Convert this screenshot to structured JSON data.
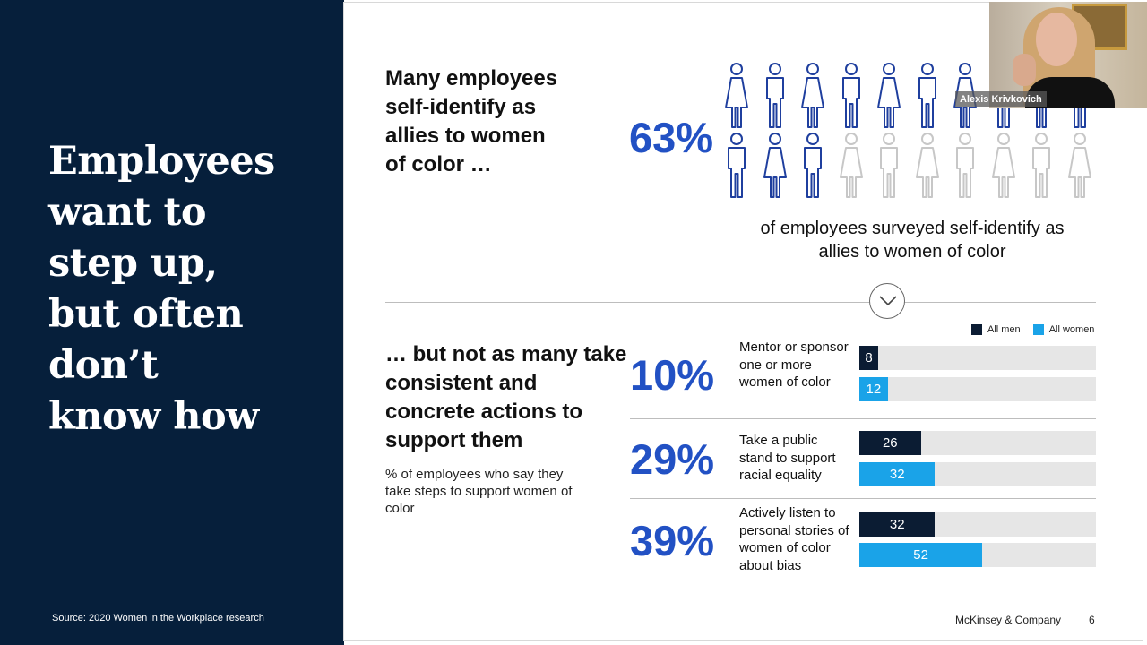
{
  "left_panel": {
    "title": "Employees\nwant to\nstep up,\nbut often\ndon’t\nknow how",
    "source": "Source: 2020 Women in the Workplace research"
  },
  "top_section": {
    "heading": "Many employees\nself-identify as\nallies to women\nof color …",
    "percent": "63%",
    "caption": "of employees surveyed self-identify as allies to women of color",
    "pictogram": {
      "total": 20,
      "highlighted": 13,
      "colors": {
        "highlighted": "#1f3f9e",
        "other": "#c7c7c7"
      },
      "icons": [
        "female",
        "male",
        "female",
        "male",
        "female",
        "male",
        "female",
        "male",
        "female",
        "male",
        "male",
        "female",
        "male",
        "female",
        "male",
        "female",
        "male",
        "female",
        "male",
        "female"
      ]
    }
  },
  "divider_icon": "chevron-down-icon",
  "bottom_section": {
    "heading": "… but not as many take consistent and concrete actions to support them",
    "subtext": "% of employees who say they take steps to support women of color",
    "legend": [
      {
        "label": "All men",
        "color": "#0b1c33"
      },
      {
        "label": "All women",
        "color": "#1aa3e8"
      }
    ]
  },
  "chart_data": {
    "type": "bar",
    "orientation": "horizontal",
    "xlim": [
      0,
      100
    ],
    "series": [
      {
        "name": "All men",
        "color": "#0b1c33"
      },
      {
        "name": "All women",
        "color": "#1aa3e8"
      }
    ],
    "rows": [
      {
        "percent": "10%",
        "label": "Mentor or sponsor one or more women of color",
        "values": [
          8,
          12
        ]
      },
      {
        "percent": "29%",
        "label": "Take a public stand to support racial equality",
        "values": [
          26,
          32
        ]
      },
      {
        "percent": "39%",
        "label": "Actively listen to personal stories of women of color about bias",
        "values": [
          32,
          52
        ]
      }
    ]
  },
  "footer": {
    "brand": "McKinsey & Company",
    "page": "6"
  },
  "video_overlay": {
    "participant_name": "Alexis Krivkovich"
  }
}
